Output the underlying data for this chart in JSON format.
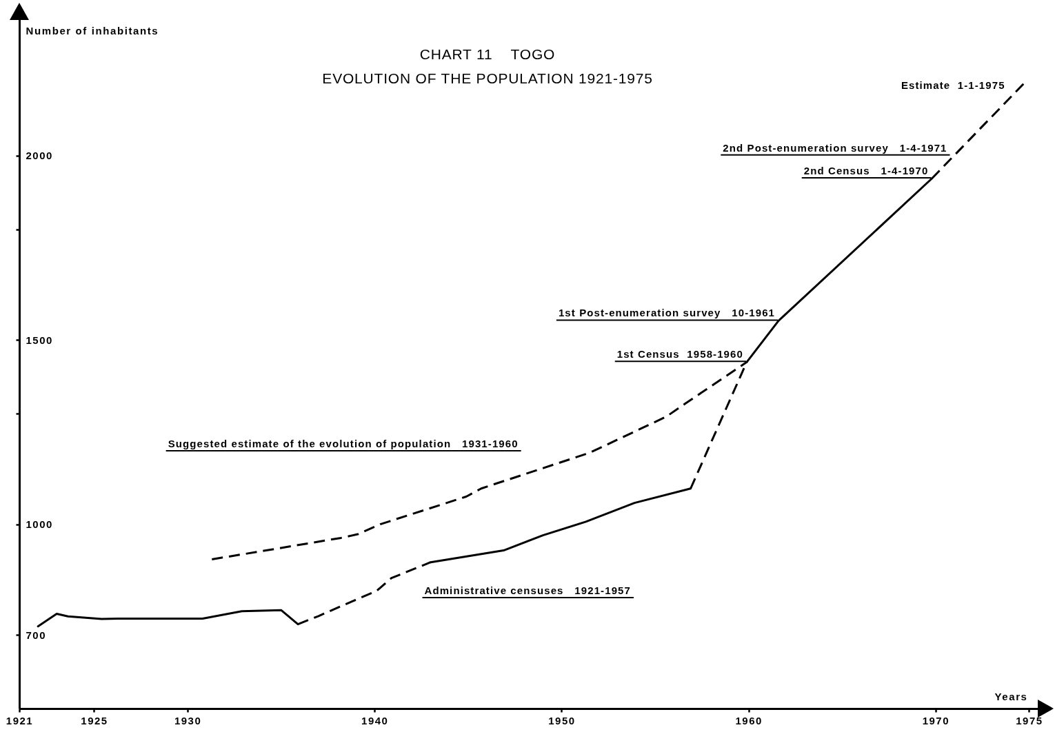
{
  "chart_data": {
    "type": "line",
    "title": "CHART 11    TOGO",
    "subtitle": "EVOLUTION OF THE POPULATION 1921-1975",
    "xlabel": "Years",
    "ylabel": "Number of inhabitants",
    "xlim": [
      1921,
      1975.5
    ],
    "xticks": [
      1921,
      1925,
      1930,
      1940,
      1950,
      1960,
      1970,
      1975
    ],
    "ylim": [
      500,
      2370
    ],
    "yticks": [
      700,
      1000,
      {
        "value": 1300,
        "label": null
      },
      1500,
      {
        "value": 1800,
        "label": null
      },
      2000
    ],
    "series": [
      {
        "color": "#000000",
        "line_style": "solid",
        "x": [
          1922.0,
          1923.0,
          1923.6,
          1925.4,
          1926.3,
          1930.8,
          1932.9,
          1935.0,
          1935.9
        ],
        "values": [
          723,
          757,
          750,
          743,
          744,
          744,
          764,
          767,
          729
        ]
      },
      {
        "color": "#000000",
        "line_style": "dashed",
        "x": [
          1935.9,
          1937.0,
          1938.9,
          1940.1,
          1940.9,
          1943.0
        ],
        "values": [
          729,
          751,
          793,
          819,
          854,
          897
        ]
      },
      {
        "color": "#000000",
        "line_style": "solid",
        "x": [
          1943.0,
          1946.9,
          1949.0,
          1951.3,
          1953.9,
          1956.9
        ],
        "values": [
          897,
          929,
          970,
          1007,
          1058,
          1097
        ]
      },
      {
        "color": "#000000",
        "line_style": "dashed",
        "x": [
          1956.9,
          1959.9
        ],
        "values": [
          1097,
          1440
        ]
      },
      {
        "color": "#000000",
        "line_style": "solid",
        "x": [
          1959.9,
          1961.6,
          1969.8
        ],
        "values": [
          1440,
          1552,
          1938
        ]
      },
      {
        "color": "#000000",
        "line_style": "dashed",
        "x": [
          1969.8,
          1974.8
        ],
        "values": [
          1938,
          2200
        ]
      },
      {
        "color": "#000000",
        "line_style": "dashed",
        "x": [
          1931.3,
          1934.2,
          1938.2,
          1939.1,
          1940.3,
          1944.9,
          1945.7,
          1951.5,
          1955.6,
          1956.6,
          1959.9
        ],
        "values": [
          905,
          929,
          963,
          973,
          1000,
          1075,
          1097,
          1194,
          1292,
          1327,
          1440
        ]
      }
    ],
    "annotations": [
      {
        "text": "Estimate  1-1-1975",
        "x": 1973.9,
        "y": 2170
      },
      {
        "text": "2nd Post-enumeration survey   1-4-1971",
        "x": 1970.8,
        "y": 2000
      },
      {
        "text": "2nd Census   1-4-1970",
        "x": 1969.8,
        "y": 1938
      },
      {
        "text": "1st Post-enumeration survey   10-1961",
        "x": 1961.6,
        "y": 1552
      },
      {
        "text": "1st Census  1958-1960",
        "x": 1959.9,
        "y": 1440
      },
      "Suggested estimate of the evolution of population   1931-1960",
      "Administrative censuses   1921-1957"
    ]
  }
}
